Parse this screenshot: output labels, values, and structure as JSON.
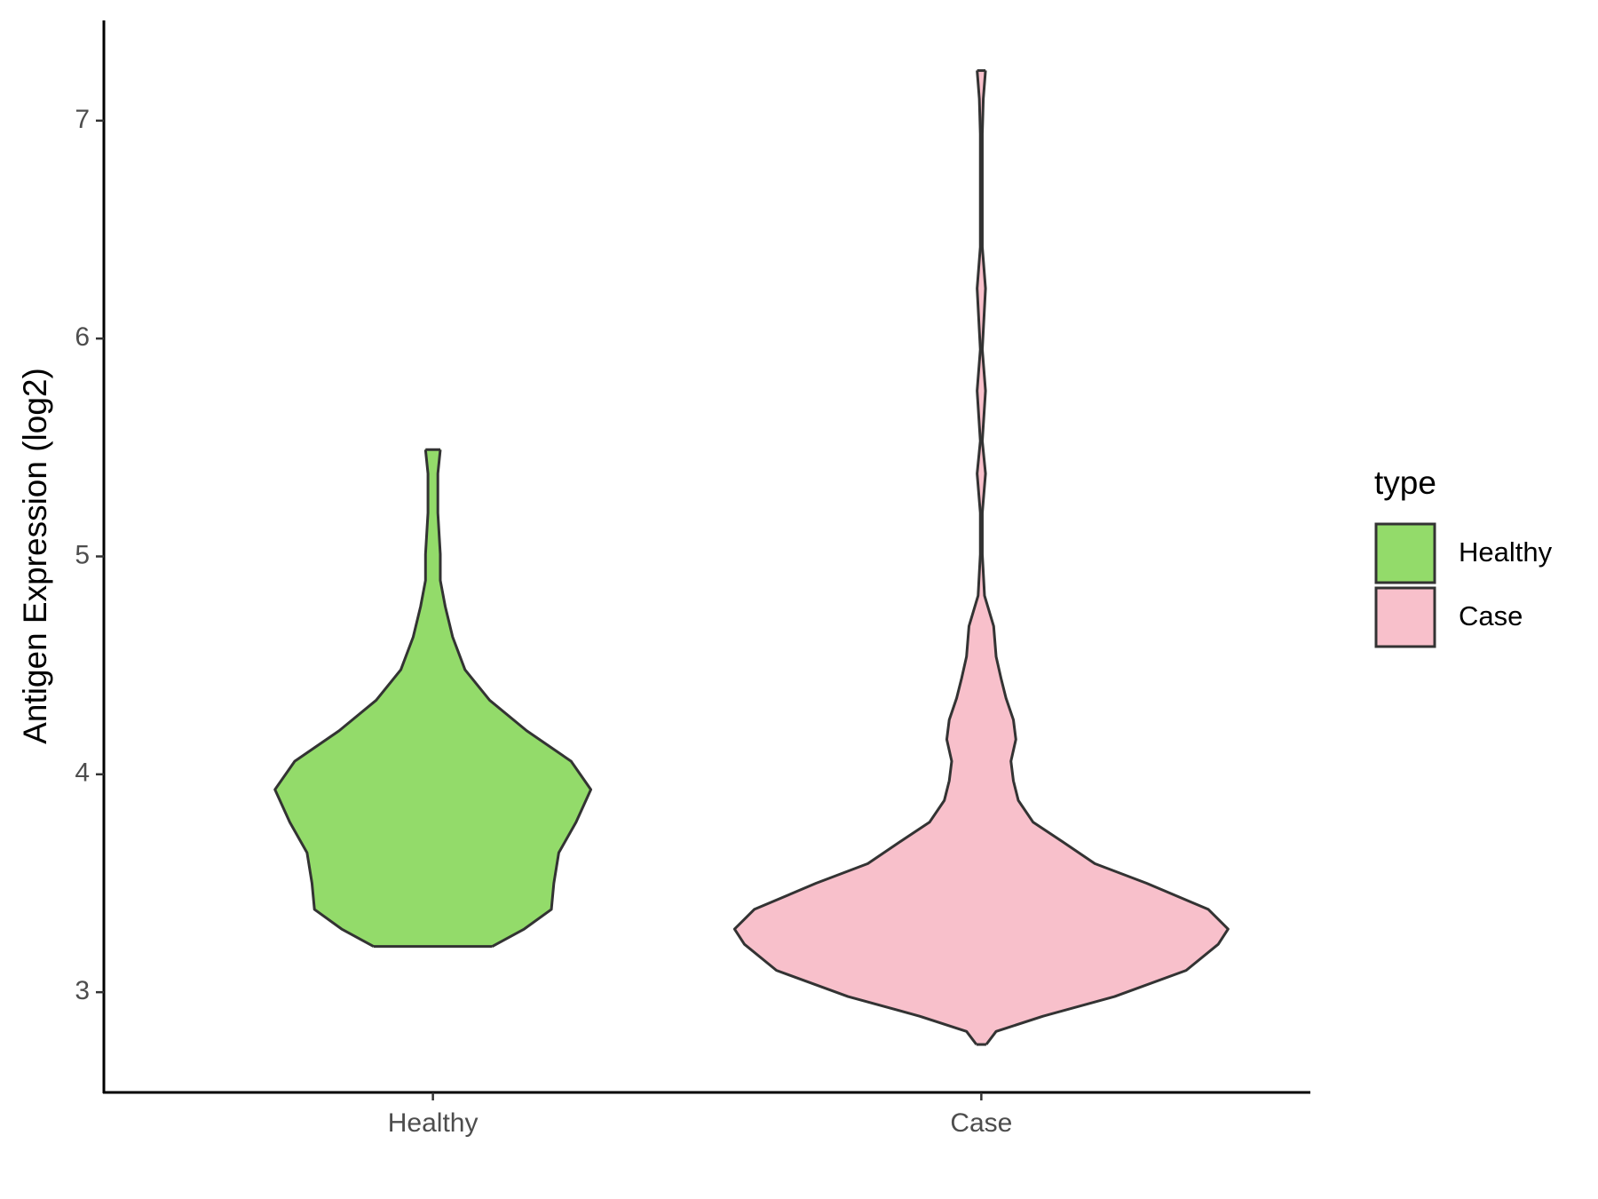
{
  "chart_data": {
    "type": "violin",
    "y_label": "Antigen Expression (log2)",
    "categories": [
      "Healthy",
      "Case"
    ],
    "ylim": [
      2.54,
      7.46
    ],
    "yticks": [
      3,
      4,
      5,
      6,
      7
    ],
    "legend_title": "type",
    "legend_position": "right",
    "series": [
      {
        "name": "Healthy",
        "color": "#93db6a",
        "y": [
          3.21,
          3.29,
          3.38,
          3.5,
          3.64,
          3.78,
          3.93,
          4.06,
          4.2,
          4.34,
          4.48,
          4.63,
          4.77,
          4.89,
          5.01,
          5.2,
          5.29,
          5.38,
          5.49
        ],
        "width": [
          0.24,
          0.37,
          0.48,
          0.49,
          0.51,
          0.58,
          0.64,
          0.56,
          0.38,
          0.23,
          0.13,
          0.08,
          0.05,
          0.03,
          0.03,
          0.02,
          0.02,
          0.02,
          0.03
        ]
      },
      {
        "name": "Case",
        "color": "#f8c0cb",
        "y": [
          2.76,
          2.82,
          2.89,
          2.98,
          3.1,
          3.22,
          3.29,
          3.38,
          3.5,
          3.59,
          3.69,
          3.78,
          3.88,
          3.97,
          4.06,
          4.16,
          4.25,
          4.35,
          4.44,
          4.54,
          4.68,
          4.82,
          5.01,
          5.2,
          5.38,
          5.53,
          5.76,
          5.95,
          6.23,
          6.42,
          6.94,
          7.1,
          7.23
        ],
        "width": [
          0.02,
          0.06,
          0.25,
          0.54,
          0.83,
          0.96,
          1.0,
          0.92,
          0.67,
          0.46,
          0.33,
          0.21,
          0.15,
          0.13,
          0.12,
          0.14,
          0.13,
          0.1,
          0.08,
          0.06,
          0.05,
          0.013,
          0.004,
          0.004,
          0.017,
          0.004,
          0.017,
          0.004,
          0.017,
          0.004,
          0.004,
          0.008,
          0.017
        ]
      }
    ]
  }
}
